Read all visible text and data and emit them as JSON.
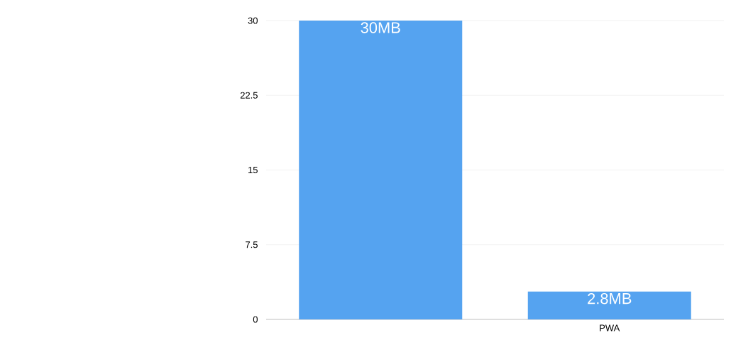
{
  "chart_data": {
    "type": "bar",
    "categories": [
      null,
      "PWA"
    ],
    "values": [
      30,
      2.8
    ],
    "value_labels": [
      "30MB",
      "2.8MB"
    ],
    "color": "#55a3f0",
    "ylim": [
      0,
      30
    ],
    "yticks": [
      0,
      7.5,
      15,
      22.5,
      30
    ],
    "grid": "y"
  }
}
